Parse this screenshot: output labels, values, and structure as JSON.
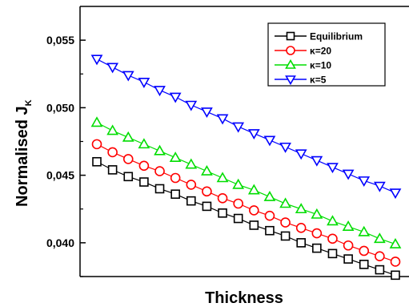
{
  "chart_data": {
    "type": "line",
    "title": "",
    "xlabel": "Thickness",
    "ylabel_main": "Normalised J",
    "ylabel_sub": "K",
    "ylim": [
      0.0375,
      0.0575
    ],
    "yticks": [
      {
        "value": 0.055,
        "label": "0,055"
      },
      {
        "value": 0.05,
        "label": "0,050"
      },
      {
        "value": 0.045,
        "label": "0,045"
      },
      {
        "value": 0.04,
        "label": "0,040"
      }
    ],
    "xticks_shown": false,
    "grid": false,
    "legend_position": "top-right",
    "series": [
      {
        "name": "Equilibrium",
        "color": "#000000",
        "marker": "square",
        "values": [
          0.046,
          0.0454,
          0.0449,
          0.0445,
          0.044,
          0.0436,
          0.0431,
          0.0427,
          0.0422,
          0.0418,
          0.0413,
          0.0409,
          0.0405,
          0.04,
          0.0396,
          0.0392,
          0.0388,
          0.0384,
          0.038,
          0.0376
        ]
      },
      {
        "name": "κ=20",
        "color": "#ff0000",
        "marker": "circle",
        "values": [
          0.0473,
          0.0467,
          0.0462,
          0.0457,
          0.0453,
          0.0448,
          0.0443,
          0.0438,
          0.0433,
          0.0429,
          0.0424,
          0.042,
          0.0415,
          0.0411,
          0.0407,
          0.0403,
          0.0398,
          0.0394,
          0.039,
          0.0386
        ]
      },
      {
        "name": "κ=10",
        "color": "#00dd00",
        "marker": "triangle-up",
        "values": [
          0.0489,
          0.0483,
          0.0478,
          0.0473,
          0.0468,
          0.0463,
          0.0458,
          0.0453,
          0.0448,
          0.0443,
          0.0439,
          0.0434,
          0.0429,
          0.0425,
          0.0421,
          0.0416,
          0.0412,
          0.0408,
          0.0403,
          0.0399
        ]
      },
      {
        "name": "κ=5",
        "color": "#0000ff",
        "marker": "triangle-down",
        "values": [
          0.0536,
          0.053,
          0.0524,
          0.0519,
          0.0513,
          0.0508,
          0.0502,
          0.0497,
          0.0492,
          0.0486,
          0.0481,
          0.0476,
          0.0471,
          0.0466,
          0.0461,
          0.0456,
          0.0451,
          0.0446,
          0.0442,
          0.0437
        ]
      }
    ]
  }
}
